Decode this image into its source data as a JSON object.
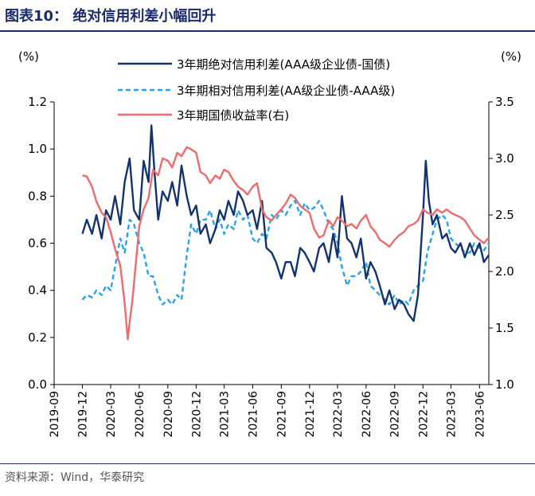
{
  "figure": {
    "title": "图表10： 绝对信用利差小幅回升",
    "source": "资料来源：Wind，华泰研究"
  },
  "chart_data": {
    "type": "line",
    "left_unit": "(%)",
    "right_unit": "(%)",
    "ylim_left": [
      0.0,
      1.2
    ],
    "ylim_right": [
      1.0,
      3.5
    ],
    "yticks_left": [
      "0.0",
      "0.2",
      "0.4",
      "0.6",
      "0.8",
      "1.0",
      "1.2"
    ],
    "yticks_right": [
      "1.0",
      "1.5",
      "2.0",
      "2.5",
      "3.0",
      "3.5"
    ],
    "x_ticks": [
      "2019-09",
      "2019-12",
      "2020-03",
      "2020-06",
      "2020-09",
      "2020-12",
      "2021-03",
      "2021-06",
      "2021-09",
      "2021-12",
      "2022-03",
      "2022-06",
      "2022-09",
      "2022-12",
      "2023-03",
      "2023-06"
    ],
    "legend_position": "top-center",
    "grid": false,
    "series": [
      {
        "name": "3年期绝对信用利差(AAA级企业债-国债)",
        "axis": "left",
        "color": "#12336e",
        "style": "solid",
        "x": [
          "2019-12-01",
          "2019-12-15",
          "2020-01-01",
          "2020-01-15",
          "2020-02-01",
          "2020-02-15",
          "2020-03-01",
          "2020-03-15",
          "2020-04-01",
          "2020-04-15",
          "2020-05-01",
          "2020-05-15",
          "2020-06-01",
          "2020-06-15",
          "2020-07-01",
          "2020-07-10",
          "2020-07-20",
          "2020-08-01",
          "2020-08-15",
          "2020-09-01",
          "2020-09-15",
          "2020-10-01",
          "2020-10-15",
          "2020-11-01",
          "2020-11-15",
          "2020-12-01",
          "2020-12-15",
          "2021-01-01",
          "2021-01-15",
          "2021-02-01",
          "2021-02-15",
          "2021-03-01",
          "2021-03-15",
          "2021-04-01",
          "2021-04-15",
          "2021-05-01",
          "2021-05-15",
          "2021-06-01",
          "2021-06-15",
          "2021-07-01",
          "2021-07-15",
          "2021-08-01",
          "2021-08-15",
          "2021-09-01",
          "2021-09-15",
          "2021-10-01",
          "2021-10-15",
          "2021-11-01",
          "2021-11-15",
          "2021-12-01",
          "2021-12-15",
          "2022-01-01",
          "2022-01-15",
          "2022-02-01",
          "2022-02-15",
          "2022-03-01",
          "2022-03-15",
          "2022-04-01",
          "2022-04-15",
          "2022-05-01",
          "2022-05-15",
          "2022-06-01",
          "2022-06-15",
          "2022-07-01",
          "2022-07-15",
          "2022-08-01",
          "2022-08-15",
          "2022-09-01",
          "2022-09-15",
          "2022-10-01",
          "2022-10-15",
          "2022-11-01",
          "2022-11-15",
          "2022-12-01",
          "2022-12-10",
          "2022-12-20",
          "2023-01-01",
          "2023-01-15",
          "2023-02-01",
          "2023-02-15",
          "2023-03-01",
          "2023-03-15",
          "2023-04-01",
          "2023-04-15",
          "2023-05-01",
          "2023-05-15",
          "2023-06-01",
          "2023-06-15",
          "2023-07-01"
        ],
        "values": [
          0.64,
          0.7,
          0.64,
          0.72,
          0.62,
          0.74,
          0.7,
          0.8,
          0.68,
          0.86,
          0.96,
          0.74,
          0.7,
          0.95,
          0.86,
          1.1,
          0.9,
          0.7,
          0.82,
          0.78,
          0.86,
          0.76,
          0.93,
          0.8,
          0.72,
          0.76,
          0.64,
          0.68,
          0.6,
          0.66,
          0.74,
          0.7,
          0.78,
          0.72,
          0.82,
          0.78,
          0.72,
          0.74,
          0.66,
          0.78,
          0.58,
          0.56,
          0.52,
          0.45,
          0.52,
          0.52,
          0.46,
          0.58,
          0.56,
          0.52,
          0.48,
          0.58,
          0.6,
          0.52,
          0.64,
          0.54,
          0.8,
          0.62,
          0.6,
          0.54,
          0.62,
          0.45,
          0.52,
          0.48,
          0.42,
          0.34,
          0.4,
          0.32,
          0.36,
          0.34,
          0.3,
          0.27,
          0.38,
          0.72,
          0.95,
          0.78,
          0.68,
          0.72,
          0.62,
          0.64,
          0.58,
          0.56,
          0.6,
          0.54,
          0.6,
          0.55,
          0.6,
          0.52,
          0.55
        ]
      },
      {
        "name": "3年期相对信用利差(AA级企业债-AAA级)",
        "axis": "left",
        "color": "#29a3e8",
        "style": "dashed",
        "x": [
          "2019-12-01",
          "2019-12-15",
          "2020-01-01",
          "2020-01-15",
          "2020-02-01",
          "2020-02-15",
          "2020-03-01",
          "2020-03-15",
          "2020-04-01",
          "2020-04-15",
          "2020-05-01",
          "2020-05-15",
          "2020-06-01",
          "2020-06-15",
          "2020-07-01",
          "2020-07-15",
          "2020-08-01",
          "2020-08-15",
          "2020-09-01",
          "2020-09-15",
          "2020-10-01",
          "2020-10-15",
          "2020-11-01",
          "2020-11-15",
          "2020-12-01",
          "2020-12-15",
          "2021-01-01",
          "2021-01-15",
          "2021-02-01",
          "2021-02-15",
          "2021-03-01",
          "2021-03-15",
          "2021-04-01",
          "2021-04-15",
          "2021-05-01",
          "2021-05-15",
          "2021-06-01",
          "2021-06-15",
          "2021-07-01",
          "2021-07-15",
          "2021-08-01",
          "2021-08-15",
          "2021-09-01",
          "2021-09-15",
          "2021-10-01",
          "2021-10-15",
          "2021-11-01",
          "2021-11-15",
          "2021-12-01",
          "2021-12-15",
          "2022-01-01",
          "2022-01-15",
          "2022-02-01",
          "2022-02-15",
          "2022-03-01",
          "2022-03-15",
          "2022-04-01",
          "2022-04-15",
          "2022-05-01",
          "2022-05-15",
          "2022-06-01",
          "2022-06-15",
          "2022-07-01",
          "2022-07-15",
          "2022-08-01",
          "2022-08-15",
          "2022-09-01",
          "2022-09-15",
          "2022-10-01",
          "2022-10-15",
          "2022-11-01",
          "2022-11-15",
          "2022-12-01",
          "2022-12-15",
          "2023-01-01",
          "2023-01-15",
          "2023-02-01",
          "2023-02-15",
          "2023-03-01",
          "2023-03-15",
          "2023-04-01",
          "2023-04-15",
          "2023-05-01",
          "2023-05-15",
          "2023-06-01",
          "2023-06-15",
          "2023-07-01"
        ],
        "values": [
          0.36,
          0.38,
          0.37,
          0.4,
          0.38,
          0.42,
          0.4,
          0.5,
          0.62,
          0.56,
          0.7,
          0.68,
          0.6,
          0.56,
          0.46,
          0.46,
          0.38,
          0.34,
          0.36,
          0.34,
          0.38,
          0.36,
          0.55,
          0.68,
          0.64,
          0.7,
          0.7,
          0.74,
          0.66,
          0.7,
          0.64,
          0.68,
          0.66,
          0.74,
          0.7,
          0.72,
          0.62,
          0.6,
          0.64,
          0.62,
          0.72,
          0.7,
          0.74,
          0.72,
          0.76,
          0.78,
          0.72,
          0.77,
          0.74,
          0.75,
          0.78,
          0.74,
          0.68,
          0.66,
          0.6,
          0.5,
          0.42,
          0.46,
          0.46,
          0.48,
          0.52,
          0.42,
          0.4,
          0.38,
          0.36,
          0.34,
          0.38,
          0.34,
          0.36,
          0.34,
          0.4,
          0.42,
          0.44,
          0.56,
          0.64,
          0.7,
          0.72,
          0.7,
          0.62,
          0.6,
          0.58,
          0.56,
          0.56,
          0.6,
          0.58,
          0.57,
          0.6
        ]
      },
      {
        "name": "3年期国债收益率(右)",
        "axis": "right",
        "color": "#ee6b6e",
        "style": "solid",
        "x": [
          "2019-12-01",
          "2019-12-15",
          "2020-01-01",
          "2020-01-15",
          "2020-02-01",
          "2020-02-15",
          "2020-03-01",
          "2020-03-15",
          "2020-04-01",
          "2020-04-15",
          "2020-04-25",
          "2020-05-01",
          "2020-05-10",
          "2020-05-20",
          "2020-06-01",
          "2020-06-15",
          "2020-07-01",
          "2020-07-15",
          "2020-08-01",
          "2020-08-15",
          "2020-09-01",
          "2020-09-15",
          "2020-10-01",
          "2020-10-15",
          "2020-11-01",
          "2020-11-15",
          "2020-12-01",
          "2020-12-15",
          "2021-01-01",
          "2021-01-15",
          "2021-02-01",
          "2021-02-15",
          "2021-03-01",
          "2021-03-15",
          "2021-04-01",
          "2021-04-15",
          "2021-05-01",
          "2021-05-15",
          "2021-06-01",
          "2021-06-15",
          "2021-07-01",
          "2021-07-15",
          "2021-08-01",
          "2021-08-15",
          "2021-09-01",
          "2021-09-15",
          "2021-10-01",
          "2021-10-15",
          "2021-11-01",
          "2021-11-15",
          "2021-12-01",
          "2021-12-15",
          "2022-01-01",
          "2022-01-15",
          "2022-02-01",
          "2022-02-15",
          "2022-03-01",
          "2022-03-15",
          "2022-04-01",
          "2022-04-15",
          "2022-05-01",
          "2022-05-15",
          "2022-06-01",
          "2022-06-15",
          "2022-07-01",
          "2022-07-15",
          "2022-08-01",
          "2022-08-15",
          "2022-09-01",
          "2022-09-15",
          "2022-10-01",
          "2022-10-15",
          "2022-11-01",
          "2022-11-15",
          "2022-12-01",
          "2022-12-15",
          "2023-01-01",
          "2023-01-15",
          "2023-02-01",
          "2023-02-15",
          "2023-03-01",
          "2023-03-15",
          "2023-04-01",
          "2023-04-15",
          "2023-05-01",
          "2023-05-15",
          "2023-06-01",
          "2023-06-15",
          "2023-07-01"
        ],
        "values": [
          2.85,
          2.84,
          2.75,
          2.62,
          2.52,
          2.48,
          2.35,
          2.2,
          2.05,
          1.72,
          1.4,
          1.55,
          1.75,
          2.05,
          2.4,
          2.55,
          2.65,
          2.9,
          2.85,
          3.0,
          2.98,
          2.92,
          3.05,
          3.02,
          3.1,
          3.08,
          3.05,
          2.88,
          2.85,
          2.78,
          2.85,
          2.82,
          2.9,
          2.88,
          2.8,
          2.75,
          2.72,
          2.68,
          2.75,
          2.78,
          2.55,
          2.48,
          2.45,
          2.5,
          2.55,
          2.6,
          2.68,
          2.65,
          2.58,
          2.55,
          2.52,
          2.38,
          2.3,
          2.32,
          2.45,
          2.4,
          2.48,
          2.45,
          2.4,
          2.42,
          2.38,
          2.45,
          2.5,
          2.4,
          2.35,
          2.28,
          2.25,
          2.22,
          2.28,
          2.32,
          2.35,
          2.4,
          2.42,
          2.45,
          2.55,
          2.52,
          2.5,
          2.55,
          2.52,
          2.55,
          2.52,
          2.5,
          2.48,
          2.45,
          2.38,
          2.32,
          2.28,
          2.25,
          2.3
        ]
      }
    ]
  }
}
